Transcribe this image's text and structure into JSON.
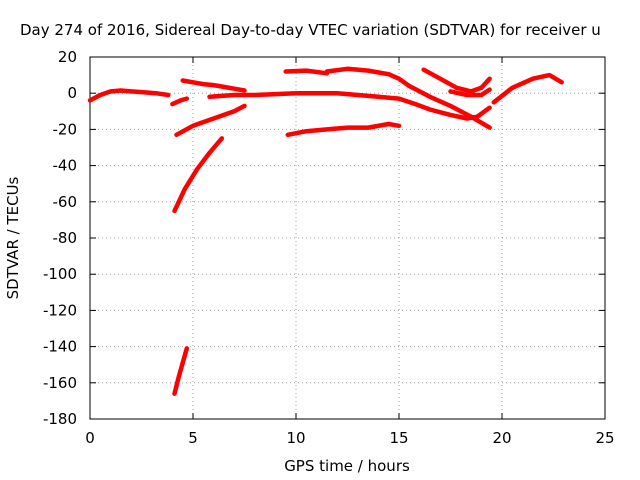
{
  "chart_data": {
    "type": "scatter",
    "title": "Day 274 of 2016, Sidereal Day-to-day VTEC variation (SDTVAR) for receiver u",
    "xlabel": "GPS time / hours",
    "ylabel": "SDTVAR / TECUs",
    "xlim": [
      0,
      25
    ],
    "ylim": [
      -180,
      20
    ],
    "xticks": [
      0,
      5,
      10,
      15,
      20,
      25
    ],
    "yticks": [
      20,
      0,
      -20,
      -40,
      -60,
      -80,
      -100,
      -120,
      -140,
      -160,
      -180
    ],
    "grid": true,
    "color": "#ff0000",
    "series": [
      {
        "x": [
          0.0,
          0.5,
          1.0,
          1.5,
          2.0,
          2.6,
          3.2,
          3.8
        ],
        "y": [
          -4,
          -1,
          1,
          1.5,
          1,
          0.5,
          0,
          -1
        ]
      },
      {
        "x": [
          4.0,
          4.4,
          4.7
        ],
        "y": [
          -6,
          -4,
          -3
        ]
      },
      {
        "x": [
          4.5,
          5.0,
          5.5,
          6.0,
          6.5,
          7.0,
          7.5
        ],
        "y": [
          7,
          6,
          5,
          4.5,
          3.5,
          2.5,
          1.5
        ]
      },
      {
        "x": [
          4.2,
          5.0,
          6.0,
          7.0,
          7.5
        ],
        "y": [
          -23,
          -18,
          -14,
          -10,
          -7
        ]
      },
      {
        "x": [
          4.1,
          4.6,
          5.2,
          5.8,
          6.4
        ],
        "y": [
          -65,
          -53,
          -42,
          -33,
          -25
        ]
      },
      {
        "x": [
          4.1,
          4.3,
          4.5,
          4.7
        ],
        "y": [
          -166,
          -157,
          -149,
          -141
        ]
      },
      {
        "x": [
          5.8,
          7.0,
          8.0,
          9.0,
          10.0,
          11.0,
          12.0,
          13.0,
          14.0,
          15.0,
          15.8,
          16.5,
          17.5,
          18.3,
          18.8,
          19.4
        ],
        "y": [
          -2,
          -1,
          -1,
          -0.5,
          0,
          0,
          0,
          -1,
          -2,
          -3,
          -6,
          -9,
          -12,
          -14,
          -13,
          -8
        ]
      },
      {
        "x": [
          9.5,
          10.5,
          11.5
        ],
        "y": [
          12,
          12.5,
          11
        ]
      },
      {
        "x": [
          11.5,
          12.5,
          13.5,
          14.5,
          15.0,
          15.5,
          16.5,
          17.5,
          18.5,
          19.4
        ],
        "y": [
          12,
          13.5,
          12.5,
          10.5,
          8,
          4,
          -2,
          -7,
          -13,
          -19
        ]
      },
      {
        "x": [
          16.2,
          17.0,
          17.8,
          18.5,
          19.0,
          19.4
        ],
        "y": [
          13,
          8,
          3,
          1,
          3,
          8
        ]
      },
      {
        "x": [
          17.5,
          18.3,
          19.0,
          19.4
        ],
        "y": [
          1,
          -1,
          -1,
          2
        ]
      },
      {
        "x": [
          9.6,
          10.5,
          11.5,
          12.5,
          13.5,
          14.5,
          15.0
        ],
        "y": [
          -23,
          -21,
          -20,
          -19,
          -19,
          -17,
          -18
        ]
      },
      {
        "x": [
          19.6,
          20.5,
          21.5,
          22.3,
          22.9
        ],
        "y": [
          -5,
          3,
          8,
          10,
          6
        ]
      }
    ]
  }
}
